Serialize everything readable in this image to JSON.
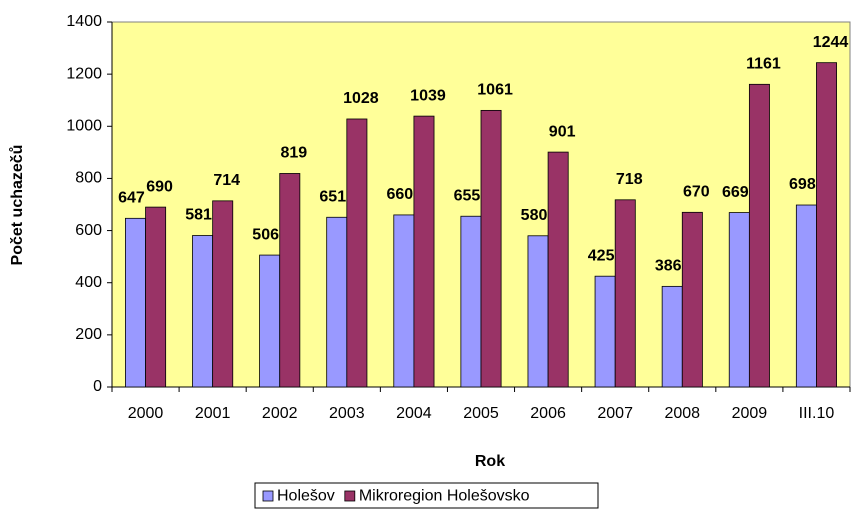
{
  "chart_data": {
    "type": "bar",
    "x_label": "Rok",
    "y_label": "Počet uchazečů",
    "categories": [
      "2000",
      "2001",
      "2002",
      "2003",
      "2004",
      "2005",
      "2006",
      "2007",
      "2008",
      "2009",
      "III.10"
    ],
    "series": [
      {
        "name": "Holešov",
        "color": "#9999ff",
        "values": [
          647,
          581,
          506,
          651,
          660,
          655,
          580,
          425,
          386,
          669,
          698
        ]
      },
      {
        "name": "Mikroregion Holešovsko",
        "color": "#993366",
        "values": [
          690,
          714,
          819,
          1028,
          1039,
          1061,
          901,
          718,
          670,
          1161,
          1244
        ]
      }
    ],
    "ylim": [
      0,
      1400
    ],
    "yticks": [
      0,
      200,
      400,
      600,
      800,
      1000,
      1200,
      1400
    ],
    "grid": false,
    "plot_background": "#ffff99",
    "legend": "bottom"
  }
}
